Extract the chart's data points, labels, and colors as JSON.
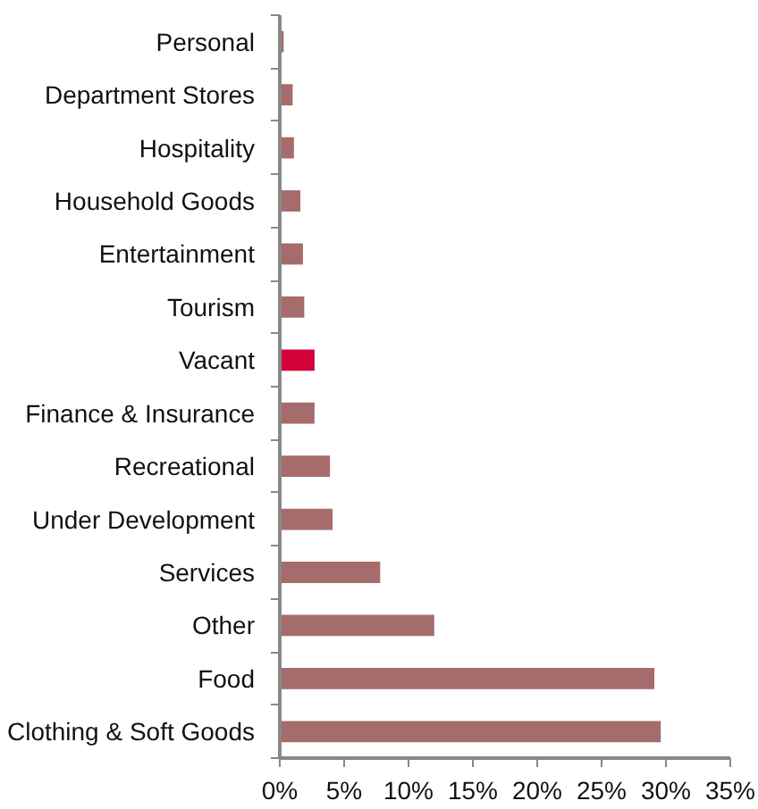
{
  "chart_data": {
    "type": "bar",
    "orientation": "horizontal",
    "categories": [
      "Personal",
      "Department Stores",
      "Hospitality",
      "Household Goods",
      "Entertainment",
      "Tourism",
      "Vacant",
      "Finance & Insurance",
      "Recreational",
      "Under Development",
      "Services",
      "Other",
      "Food",
      "Clothing & Soft Goods"
    ],
    "values": [
      0.3,
      1.0,
      1.1,
      1.6,
      1.8,
      1.9,
      2.7,
      2.7,
      3.9,
      4.1,
      7.8,
      12.0,
      29.1,
      29.6
    ],
    "colors": [
      "#a66b6b",
      "#a66b6b",
      "#a66b6b",
      "#a66b6b",
      "#a66b6b",
      "#a66b6b",
      "#d4003a",
      "#a66b6b",
      "#a66b6b",
      "#a66b6b",
      "#a66b6b",
      "#a66b6b",
      "#a66b6b",
      "#a66b6b"
    ],
    "xlim": [
      0,
      35
    ],
    "xticks": [
      {
        "value": 0,
        "label": "0%"
      },
      {
        "value": 5,
        "label": "5%"
      },
      {
        "value": 10,
        "label": "10%"
      },
      {
        "value": 15,
        "label": "15%"
      },
      {
        "value": 20,
        "label": "20%"
      },
      {
        "value": 25,
        "label": "25%"
      },
      {
        "value": 30,
        "label": "30%"
      },
      {
        "value": 35,
        "label": "35%"
      }
    ],
    "grid": false
  }
}
